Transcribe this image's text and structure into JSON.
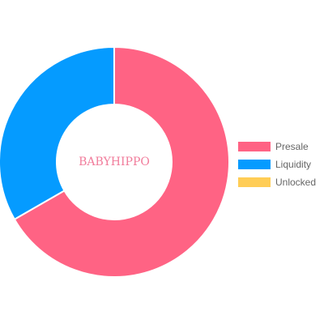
{
  "chart_data": {
    "type": "pie",
    "variant": "doughnut",
    "center_text": "BABYHIPPO",
    "center_text_color": "#f17c9b",
    "categories": [
      "Presale",
      "Liquidity",
      "Unlocked"
    ],
    "values": [
      66.7,
      33.3,
      0
    ],
    "colors": [
      "#ff6384",
      "#059bff",
      "#ffcd56"
    ],
    "legend_position": "right",
    "start_angle_deg": 0,
    "direction": "clockwise"
  }
}
